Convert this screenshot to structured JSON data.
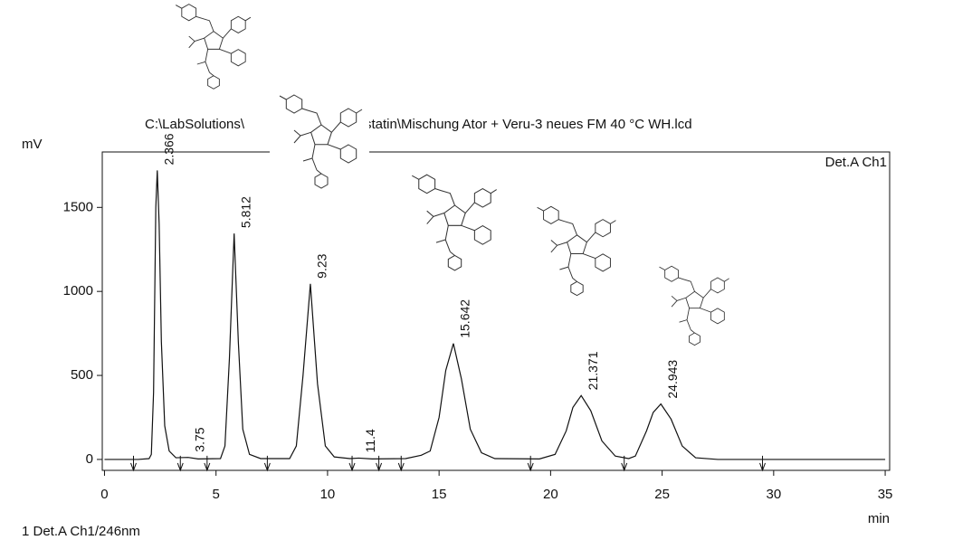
{
  "chart_data": {
    "type": "line",
    "title_left": "C:\\LabSolutions\\",
    "title_right": "statin\\Mischung Ator + Veru-3 neues FM 40 °C WH.lcd",
    "y_label": "mV",
    "x_label": "min",
    "channel_label": "Det.A Ch1",
    "footer": "1  Det.A Ch1/246nm",
    "xlim": [
      -0.1,
      35.2
    ],
    "xticks": [
      0,
      5,
      10,
      15,
      20,
      25,
      30,
      35
    ],
    "ylim": [
      -65,
      1830
    ],
    "yticks": [
      0,
      500,
      1000,
      1500
    ],
    "series": [
      {
        "name": "Det.A Ch1",
        "color": "#111111",
        "x": [
          0,
          1.5,
          2.0,
          2.1,
          2.2,
          2.3,
          2.366,
          2.45,
          2.55,
          2.7,
          2.9,
          3.2,
          3.75,
          4.2,
          5.2,
          5.4,
          5.6,
          5.812,
          6.0,
          6.2,
          6.5,
          7.0,
          8.3,
          8.6,
          8.9,
          9.23,
          9.55,
          9.9,
          10.3,
          11.0,
          11.4,
          12.0,
          13.5,
          14.2,
          14.6,
          15.0,
          15.3,
          15.642,
          16.0,
          16.4,
          16.9,
          17.5,
          19.5,
          20.2,
          20.7,
          21.0,
          21.371,
          21.8,
          22.3,
          22.9,
          23.5,
          23.8,
          24.3,
          24.6,
          24.943,
          25.4,
          25.9,
          26.5,
          27.5,
          35
        ],
        "values": [
          0,
          0,
          5,
          30,
          400,
          1500,
          1720,
          1400,
          700,
          200,
          50,
          10,
          12,
          3,
          5,
          80,
          600,
          1345,
          700,
          180,
          30,
          5,
          5,
          80,
          500,
          1045,
          450,
          80,
          15,
          5,
          8,
          3,
          5,
          25,
          50,
          250,
          530,
          690,
          480,
          180,
          40,
          5,
          3,
          30,
          170,
          310,
          380,
          290,
          110,
          20,
          5,
          20,
          170,
          280,
          330,
          240,
          80,
          10,
          0,
          0
        ]
      }
    ],
    "peak_times": [
      2.366,
      3.75,
      5.812,
      9.23,
      11.4,
      15.642,
      21.371,
      24.943
    ],
    "integration_marks": [
      1.3,
      3.4,
      4.6,
      7.3,
      11.1,
      12.3,
      13.3,
      19.1,
      23.3,
      29.5
    ]
  }
}
